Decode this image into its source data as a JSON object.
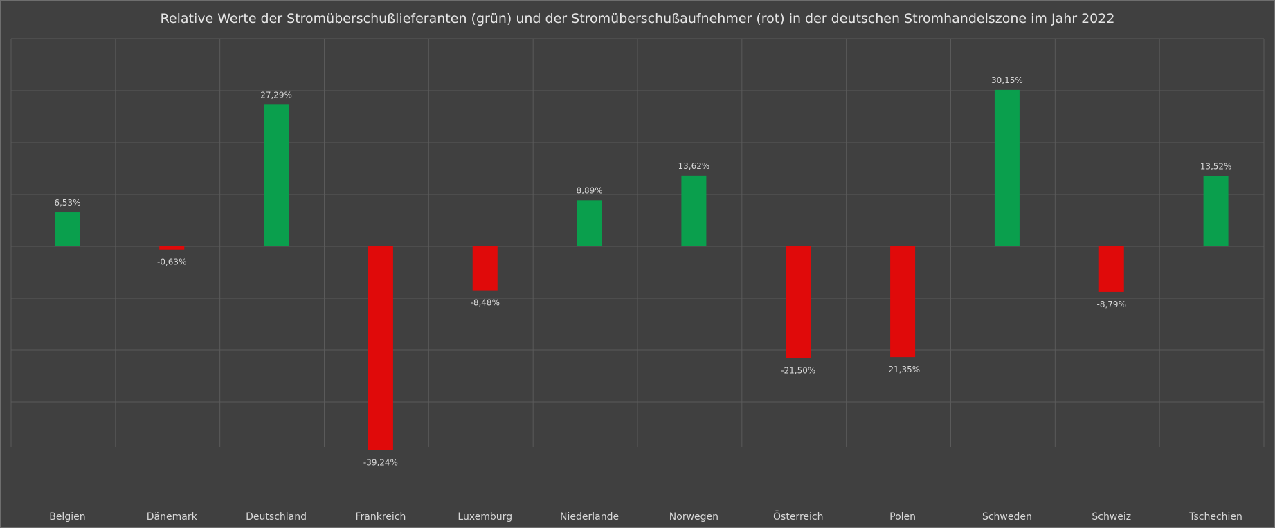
{
  "chart_data": {
    "type": "bar",
    "title": "Relative Werte der Stromüberschußlieferanten (grün) und der Stromüberschußaufnehmer (rot) in der deutschen Stromhandelszone  im Jahr 2022",
    "xlabel": "",
    "ylabel": "",
    "categories": [
      "Belgien",
      "Dänemark",
      "Deutschland",
      "Frankreich",
      "Luxemburg",
      "Niederlande",
      "Norwegen",
      "Österreich",
      "Polen",
      "Schweden",
      "Schweiz",
      "Tschechien"
    ],
    "values": [
      6.53,
      -0.63,
      27.29,
      -39.24,
      -8.48,
      8.89,
      13.62,
      -21.5,
      -21.35,
      30.15,
      -8.79,
      13.52
    ],
    "value_labels": [
      "6,53%",
      "-0,63%",
      "27,29%",
      "-39,24%",
      "-8,48%",
      "8,89%",
      "13,62%",
      "-21,50%",
      "-21,35%",
      "30,15%",
      "-8,79%",
      "13,52%"
    ],
    "ylim": [
      -40,
      40
    ],
    "grid": true,
    "legend": "none",
    "colors": {
      "positive": "#0a9f4d",
      "negative": "#e00a0a",
      "background": "#404040",
      "grid": "#5a5a5a",
      "text": "#e6e6e6",
      "label": "#d8d8d8"
    }
  }
}
